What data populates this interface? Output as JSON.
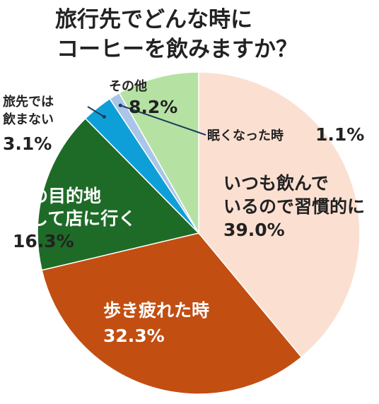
{
  "chart_data": {
    "type": "pie",
    "title_lines": [
      "旅行先でどんな時に",
      "コーヒーを飲みますか？"
    ],
    "slices": [
      {
        "label_lines": [
          "いつも飲んで",
          "いるので習慣的に"
        ],
        "value_label": "39.0%",
        "value": 39.0,
        "color": "#FBE0D2"
      },
      {
        "label_lines": [
          "歩き疲れた時"
        ],
        "value_label": "32.3%",
        "value": 32.3,
        "color": "#C24E12"
      },
      {
        "label_lines": [
          "旅の目的地",
          "として店に行く"
        ],
        "value_label": "16.3%",
        "value": 16.3,
        "color": "#1E6B28"
      },
      {
        "label_lines": [
          "旅先では",
          "飲まない"
        ],
        "value_label": "3.1%",
        "value": 3.1,
        "color": "#0F9FD8"
      },
      {
        "label_lines": [
          "眠くなった時"
        ],
        "value_label": "1.1%",
        "value": 1.1,
        "color": "#A9C5E8"
      },
      {
        "label_lines": [
          "その他"
        ],
        "value_label": "8.2%",
        "value": 8.2,
        "color": "#B5E2A3"
      }
    ],
    "start_angle_deg": 0,
    "direction": "clockwise"
  }
}
